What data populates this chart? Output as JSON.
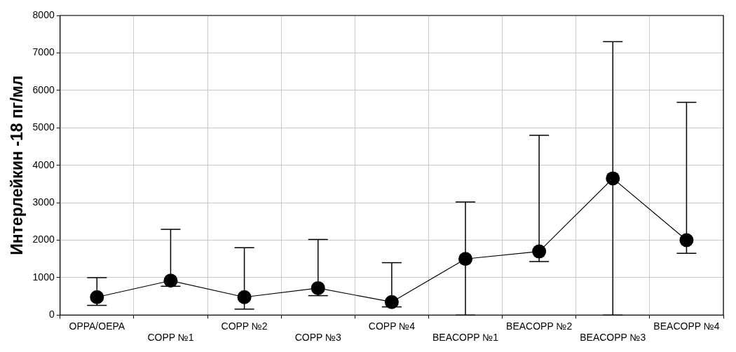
{
  "chart_data": {
    "type": "line",
    "ylabel": "Интерлейкин -18 пг/мл",
    "categories": [
      "OPPA/OEPA",
      "COPP №1",
      "COPP №2",
      "COPP №3",
      "COPP №4",
      "BEACOPP №1",
      "BEACOPP №2",
      "BEACOPP №3",
      "BEACOPP №4"
    ],
    "series": [
      {
        "color": "#000000",
        "values": [
          480,
          920,
          480,
          720,
          350,
          1500,
          1700,
          3650,
          2000
        ],
        "errors": [
          [
            260,
            1000
          ],
          [
            770,
            2290
          ],
          [
            160,
            1800
          ],
          [
            520,
            2020
          ],
          [
            220,
            1400
          ],
          [
            0,
            3020
          ],
          [
            1430,
            4800
          ],
          [
            0,
            7300
          ],
          [
            1650,
            5680
          ]
        ]
      }
    ],
    "ylim": [
      0,
      8000
    ],
    "yticks": [
      0,
      1000,
      2000,
      3000,
      4000,
      5000,
      6000,
      7000,
      8000
    ],
    "grid": true,
    "legend": false,
    "marker": "circle",
    "line_style": "solid"
  }
}
